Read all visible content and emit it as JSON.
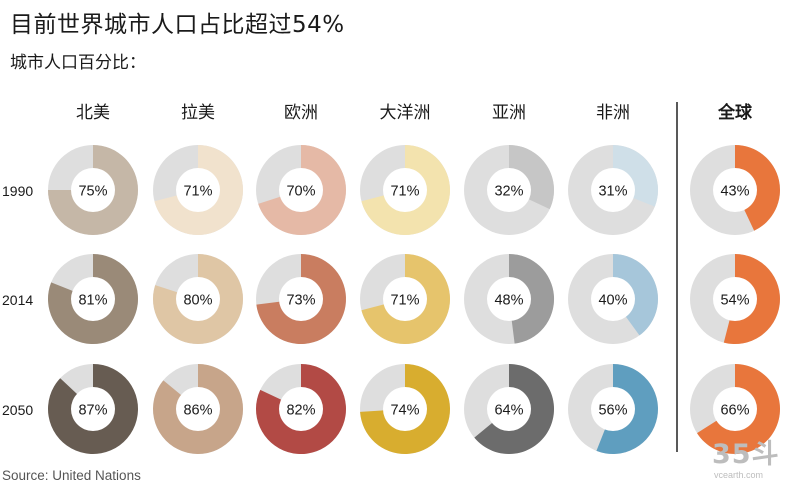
{
  "chart_data": {
    "type": "donut-grid",
    "title": "目前世界城市人口占比超过54%",
    "subtitle": "城市人口百分比：",
    "source": "Source: United Nations",
    "watermark": "35斗",
    "watermark_url": "vcearth.com",
    "years": [
      "1990",
      "2014",
      "2050"
    ],
    "regions": [
      {
        "name": "北美",
        "colors": [
          "#c5b7a7",
          "#9a8a78",
          "#675c52"
        ]
      },
      {
        "name": "拉美",
        "colors": [
          "#f1e2cd",
          "#dfc6a5",
          "#c7a58a"
        ]
      },
      {
        "name": "欧洲",
        "colors": [
          "#e5b9a6",
          "#c97d60",
          "#b24a45"
        ]
      },
      {
        "name": "大洋洲",
        "colors": [
          "#f3e3ae",
          "#e6c46c",
          "#d8ad2f"
        ]
      },
      {
        "name": "亚洲",
        "colors": [
          "#c6c6c6",
          "#9c9c9c",
          "#6c6c6c"
        ]
      },
      {
        "name": "非洲",
        "colors": [
          "#cfdfe8",
          "#a6c6da",
          "#5f9ebf"
        ]
      },
      {
        "name": "全球",
        "bold": true,
        "colors": [
          "#e8763c",
          "#e8763c",
          "#e8763c"
        ]
      }
    ],
    "values": [
      [
        75,
        81,
        87
      ],
      [
        71,
        80,
        86
      ],
      [
        70,
        73,
        82
      ],
      [
        71,
        71,
        74
      ],
      [
        32,
        48,
        64
      ],
      [
        31,
        40,
        56
      ],
      [
        43,
        54,
        66
      ]
    ],
    "value_suffix": "%",
    "remainder_color": "#dedede",
    "center_color": "#ffffff"
  }
}
